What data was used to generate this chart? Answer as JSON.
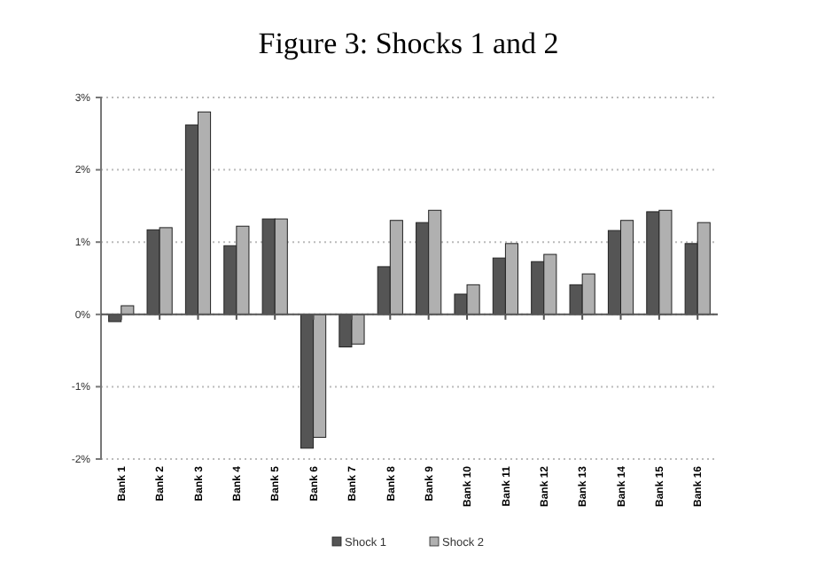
{
  "chart_data": {
    "type": "bar",
    "title": "Figure 3: Shocks 1 and 2",
    "categories": [
      "Bank 1",
      "Bank 2",
      "Bank 3",
      "Bank 4",
      "Bank 5",
      "Bank 6",
      "Bank 7",
      "Bank 8",
      "Bank 9",
      "Bank 10",
      "Bank 11",
      "Bank 12",
      "Bank 13",
      "Bank 14",
      "Bank 15",
      "Bank 16"
    ],
    "series": [
      {
        "name": "Shock 1",
        "color": "#555555",
        "values": [
          -0.1,
          1.17,
          2.62,
          0.95,
          1.32,
          -1.85,
          -0.45,
          0.66,
          1.27,
          0.28,
          0.78,
          0.73,
          0.41,
          1.16,
          1.42,
          0.98
        ]
      },
      {
        "name": "Shock 2",
        "color": "#b0b0b0",
        "values": [
          0.12,
          1.2,
          2.8,
          1.22,
          1.32,
          -1.7,
          -0.41,
          1.3,
          1.44,
          0.41,
          0.98,
          0.83,
          0.56,
          1.3,
          1.44,
          1.27
        ]
      }
    ],
    "ylim": [
      -2,
      3
    ],
    "yticks": [
      {
        "value": -2,
        "label": "-2%"
      },
      {
        "value": -1,
        "label": "-1%"
      },
      {
        "value": 0,
        "label": "0%"
      },
      {
        "value": 1,
        "label": "1%"
      },
      {
        "value": 2,
        "label": "2%"
      },
      {
        "value": 3,
        "label": "3%"
      }
    ],
    "ref_lines": [
      {
        "axis": "y",
        "value": 0,
        "color": "#555555"
      }
    ],
    "grid": "y",
    "legend": "bottom"
  }
}
